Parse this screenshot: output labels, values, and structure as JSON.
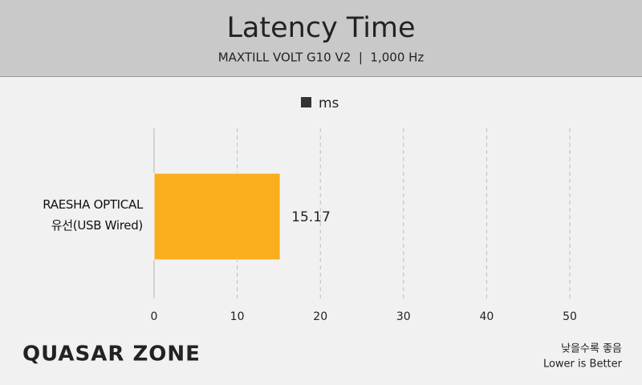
{
  "chart_data": {
    "type": "bar",
    "orientation": "horizontal",
    "title": "Latency Time",
    "subtitle": "MAXTILL VOLT G10 V2  |  1,000 Hz",
    "categories": [
      "RAESHA OPTICAL\n유선(USB Wired)"
    ],
    "series": [
      {
        "name": "ms",
        "color": "#fbae1d",
        "values": [
          15.17
        ]
      }
    ],
    "xlim": [
      0,
      50
    ],
    "xticks": [
      0,
      10,
      20,
      30,
      40,
      50
    ],
    "grid": true,
    "legend": "top",
    "logo": "QUASAR ZONE",
    "note": [
      "낮을수록 좋음",
      "Lower is Better"
    ]
  }
}
